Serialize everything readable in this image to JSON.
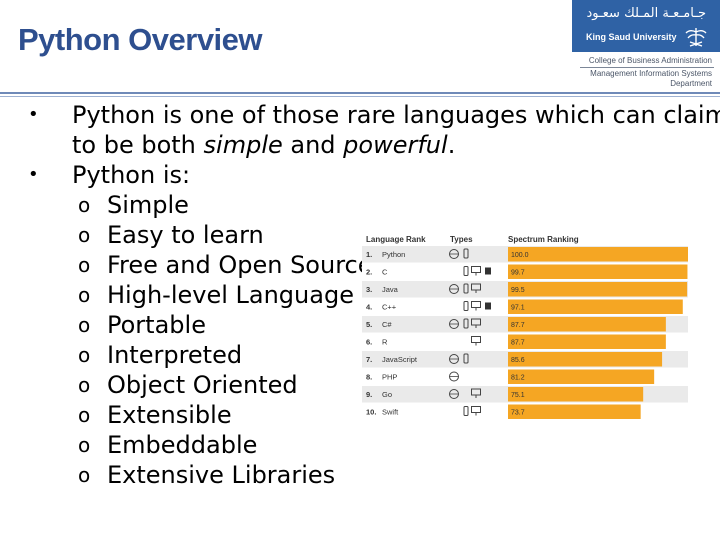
{
  "title": "Python Overview",
  "logo": {
    "arabic": "جـامـعـة المـلك سعـود",
    "english": "King Saud University"
  },
  "college": {
    "line1": "College of Business Administration",
    "line2": "Management Information Systems",
    "line3": "Department"
  },
  "bullets": [
    {
      "pre": "Python is one of those rare languages which can claim to be both ",
      "em1": "simple",
      "mid": " and ",
      "em2": "powerful",
      "post": "."
    },
    {
      "text": "Python is:"
    }
  ],
  "subitems": [
    "Simple",
    "Easy to learn",
    "Free and Open Source",
    "High-level Language",
    "Portable",
    "Interpreted",
    "Object Oriented",
    "Extensible",
    "Embeddable",
    "Extensive Libraries"
  ],
  "ranking_table": {
    "headers": [
      "Language Rank",
      "Types",
      "Spectrum Ranking"
    ],
    "accent": "#f5a623",
    "rows": [
      {
        "rank": "1.",
        "name": "Python",
        "value": 100.0,
        "value_label": "100.0",
        "types": [
          "web",
          "mobile"
        ]
      },
      {
        "rank": "2.",
        "name": "C",
        "value": 99.7,
        "value_label": "99.7",
        "types": [
          "mobile",
          "desktop",
          "embedded"
        ]
      },
      {
        "rank": "3.",
        "name": "Java",
        "value": 99.5,
        "value_label": "99.5",
        "types": [
          "web",
          "mobile",
          "desktop"
        ]
      },
      {
        "rank": "4.",
        "name": "C++",
        "value": 97.1,
        "value_label": "97.1",
        "types": [
          "mobile",
          "desktop",
          "embedded"
        ]
      },
      {
        "rank": "5.",
        "name": "C#",
        "value": 87.7,
        "value_label": "87.7",
        "types": [
          "web",
          "mobile",
          "desktop"
        ]
      },
      {
        "rank": "6.",
        "name": "R",
        "value": 87.7,
        "value_label": "87.7",
        "types": [
          "desktop"
        ]
      },
      {
        "rank": "7.",
        "name": "JavaScript",
        "value": 85.6,
        "value_label": "85.6",
        "types": [
          "web",
          "mobile"
        ]
      },
      {
        "rank": "8.",
        "name": "PHP",
        "value": 81.2,
        "value_label": "81.2",
        "types": [
          "web"
        ]
      },
      {
        "rank": "9.",
        "name": "Go",
        "value": 75.1,
        "value_label": "75.1",
        "types": [
          "web",
          "desktop"
        ]
      },
      {
        "rank": "10.",
        "name": "Swift",
        "value": 73.7,
        "value_label": "73.7",
        "types": [
          "mobile",
          "desktop"
        ]
      }
    ]
  }
}
